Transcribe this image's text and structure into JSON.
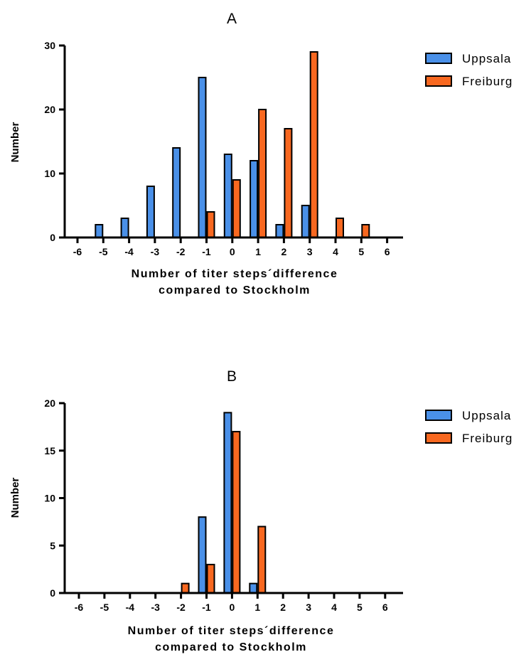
{
  "chart_data": [
    {
      "type": "bar",
      "title": "A",
      "xlabel": [
        "Number of titer steps´difference",
        "compared to Stockholm"
      ],
      "ylabel": "Number",
      "categories": [
        "-6",
        "-5",
        "-4",
        "-3",
        "-2",
        "-1",
        "0",
        "1",
        "2",
        "3",
        "4",
        "5",
        "6"
      ],
      "series": [
        {
          "name": "Uppsala",
          "color": "#4a90e8",
          "values": [
            0,
            2,
            3,
            8,
            14,
            25,
            13,
            12,
            2,
            5,
            0,
            0,
            0
          ]
        },
        {
          "name": "Freiburg",
          "color": "#f86820",
          "values": [
            0,
            0,
            0,
            0,
            0,
            4,
            9,
            20,
            17,
            29,
            3,
            2,
            0
          ]
        }
      ],
      "ylim": [
        0,
        30
      ],
      "yticks": [
        "0",
        "10",
        "20",
        "30"
      ],
      "legend": "right"
    },
    {
      "type": "bar",
      "title": "B",
      "xlabel": [
        "Number of titer steps´difference",
        "compared to Stockholm"
      ],
      "ylabel": "Number",
      "categories": [
        "-6",
        "-5",
        "-4",
        "-3",
        "-2",
        "-1",
        "0",
        "1",
        "2",
        "3",
        "4",
        "5",
        "6"
      ],
      "series": [
        {
          "name": "Uppsala",
          "color": "#4a90e8",
          "values": [
            0,
            0,
            0,
            0,
            0,
            8,
            19,
            1,
            0,
            0,
            0,
            0,
            0
          ]
        },
        {
          "name": "Freiburg",
          "color": "#f86820",
          "values": [
            0,
            0,
            0,
            0,
            1,
            3,
            17,
            7,
            0,
            0,
            0,
            0,
            0
          ]
        }
      ],
      "ylim": [
        0,
        20
      ],
      "yticks": [
        "0",
        "5",
        "10",
        "15",
        "20"
      ],
      "legend": "right"
    }
  ]
}
